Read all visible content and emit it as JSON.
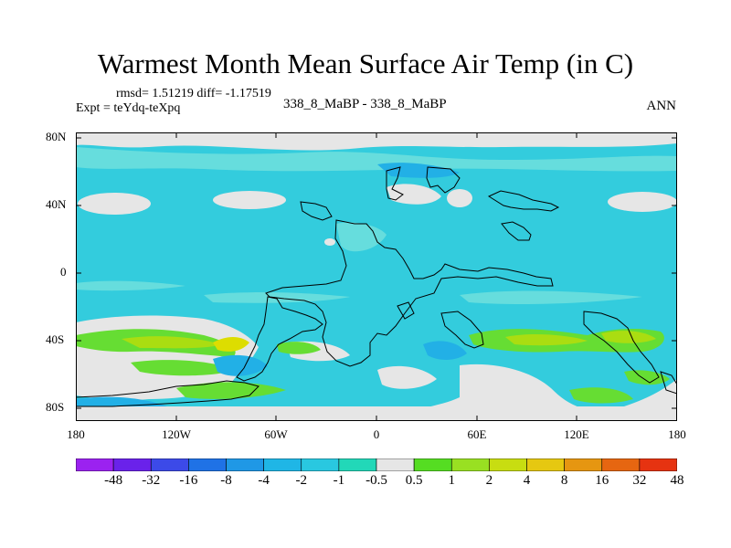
{
  "header": {
    "title": "Warmest Month Mean Surface Air Temp (in C)",
    "stats": "rmsd= 1.51219 diff= -1.17519",
    "expt": "Expt = teYdq-teXpq",
    "subtitle": "338_8_MaBP - 338_8_MaBP",
    "period": "ANN"
  },
  "map": {
    "lat_labels": [
      "80N",
      "40N",
      "0",
      "40S",
      "80S"
    ],
    "lon_labels": [
      "180",
      "120W",
      "60W",
      "0",
      "60E",
      "120E",
      "180"
    ],
    "colors": {
      "land_outline": "#000000",
      "neutral": "#e6e6e6",
      "ocean_main": "#33ccdd",
      "light_cyan": "#66dddd",
      "mid_blue": "#22b0e6",
      "teal": "#22d3b6",
      "green": "#66dd33",
      "yellow_green": "#aadd11",
      "yellow": "#dddd00"
    }
  },
  "colorbar": {
    "labels": [
      "-48",
      "-32",
      "-16",
      "-8",
      "-4",
      "-2",
      "-1",
      "-0.5",
      "0.5",
      "1",
      "2",
      "4",
      "8",
      "16",
      "32",
      "48"
    ],
    "colors": [
      "#9b22f0",
      "#6a22ea",
      "#3c4ae8",
      "#1f72e6",
      "#1f98e6",
      "#1fb6e6",
      "#29c8e0",
      "#22d8b8",
      "#e6e6e6",
      "#55dd22",
      "#99e022",
      "#c8dd11",
      "#e6c811",
      "#e69611",
      "#e66611",
      "#e63311"
    ]
  }
}
